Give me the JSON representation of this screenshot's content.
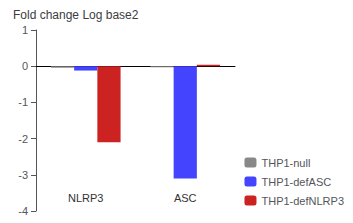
{
  "chart_data": {
    "type": "bar",
    "title": "Fold change Log base2",
    "categories": [
      "NLRP3",
      "ASC"
    ],
    "series": [
      {
        "name": "THP1-null",
        "color": "#888888",
        "values": [
          -0.04,
          -0.03
        ]
      },
      {
        "name": "THP1-defASC",
        "color": "#4444ff",
        "values": [
          -0.12,
          -3.1
        ]
      },
      {
        "name": "THP1-defNLRP3",
        "color": "#cc2222",
        "values": [
          -2.1,
          0.04
        ]
      }
    ],
    "ylim": [
      -4,
      1
    ],
    "yticks": [
      -4,
      -3,
      -2,
      -1,
      0,
      1
    ],
    "grid": false,
    "legend": "lower right"
  }
}
